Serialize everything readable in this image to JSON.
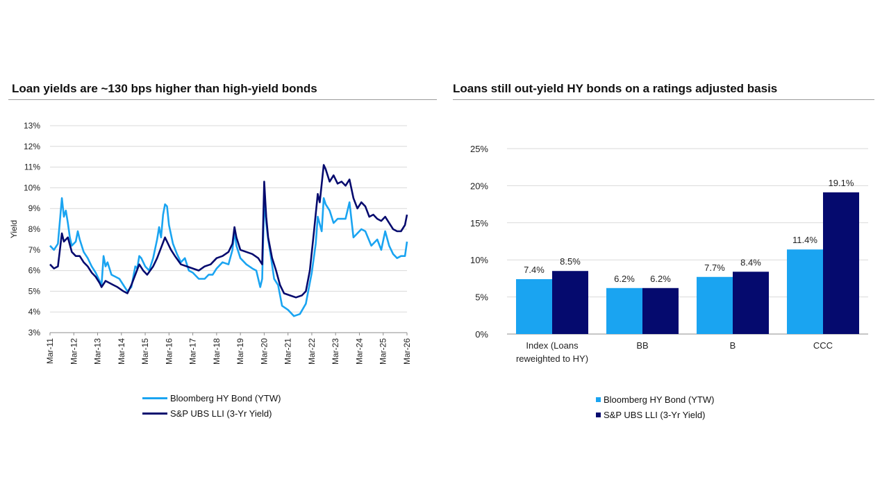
{
  "colors": {
    "hy": "#1aa4f1",
    "lli": "#050a6e",
    "grid": "#d9d9d9",
    "axis": "#8c8c8c"
  },
  "left": {
    "title": "Loan yields are ~130 bps higher than high-yield bonds",
    "legend": [
      "Bloomberg HY Bond (YTW)",
      "S&P UBS LLI (3-Yr Yield)"
    ]
  },
  "right": {
    "title": "Loans still out-yield HY bonds on a ratings adjusted basis",
    "legend": [
      "Bloomberg HY Bond (YTW)",
      "S&P UBS LLI (3-Yr Yield)"
    ]
  },
  "chart_data": [
    {
      "type": "line",
      "title": "Loan yields are ~130 bps higher than high-yield bonds",
      "xlabel": "",
      "ylabel": "Yield",
      "ylim": [
        3,
        13
      ],
      "xlim": [
        "2011-03",
        "2026-03"
      ],
      "y_ticks": [
        "3%",
        "4%",
        "5%",
        "6%",
        "7%",
        "8%",
        "9%",
        "10%",
        "11%",
        "12%",
        "13%"
      ],
      "x_ticks": [
        "Mar-11",
        "Mar-12",
        "Mar-13",
        "Mar-14",
        "Mar-15",
        "Mar-16",
        "Mar-17",
        "Mar-18",
        "Mar-19",
        "Mar-20",
        "Mar-21",
        "Mar-22",
        "Mar-23",
        "Mar-24",
        "Mar-25",
        "Mar-26"
      ],
      "grid": true,
      "legend_position": "bottom",
      "series": [
        {
          "name": "Bloomberg HY Bond (YTW)",
          "color": "#1aa4f1",
          "points": [
            [
              "2011-03",
              7.2
            ],
            [
              "2011-05",
              7.0
            ],
            [
              "2011-07",
              7.3
            ],
            [
              "2011-09",
              9.5
            ],
            [
              "2011-10",
              8.6
            ],
            [
              "2011-11",
              8.9
            ],
            [
              "2011-12",
              8.3
            ],
            [
              "2012-01",
              7.6
            ],
            [
              "2012-02",
              7.2
            ],
            [
              "2012-04",
              7.4
            ],
            [
              "2012-05",
              7.9
            ],
            [
              "2012-06",
              7.5
            ],
            [
              "2012-08",
              6.9
            ],
            [
              "2012-10",
              6.6
            ],
            [
              "2012-12",
              6.2
            ],
            [
              "2013-02",
              5.9
            ],
            [
              "2013-04",
              5.5
            ],
            [
              "2013-05",
              5.3
            ],
            [
              "2013-06",
              6.7
            ],
            [
              "2013-07",
              6.2
            ],
            [
              "2013-08",
              6.4
            ],
            [
              "2013-10",
              5.8
            ],
            [
              "2013-12",
              5.7
            ],
            [
              "2014-02",
              5.6
            ],
            [
              "2014-04",
              5.3
            ],
            [
              "2014-06",
              5.0
            ],
            [
              "2014-08",
              5.2
            ],
            [
              "2014-10",
              6.2
            ],
            [
              "2014-11",
              6.1
            ],
            [
              "2014-12",
              6.7
            ],
            [
              "2015-01",
              6.6
            ],
            [
              "2015-03",
              6.2
            ],
            [
              "2015-05",
              6.0
            ],
            [
              "2015-07",
              6.6
            ],
            [
              "2015-09",
              7.5
            ],
            [
              "2015-10",
              8.1
            ],
            [
              "2015-11",
              7.6
            ],
            [
              "2015-12",
              8.7
            ],
            [
              "2016-01",
              9.2
            ],
            [
              "2016-02",
              9.1
            ],
            [
              "2016-03",
              8.2
            ],
            [
              "2016-05",
              7.3
            ],
            [
              "2016-07",
              6.8
            ],
            [
              "2016-09",
              6.4
            ],
            [
              "2016-11",
              6.6
            ],
            [
              "2017-01",
              6.0
            ],
            [
              "2017-03",
              5.9
            ],
            [
              "2017-06",
              5.6
            ],
            [
              "2017-09",
              5.6
            ],
            [
              "2017-11",
              5.8
            ],
            [
              "2018-01",
              5.8
            ],
            [
              "2018-03",
              6.1
            ],
            [
              "2018-06",
              6.4
            ],
            [
              "2018-09",
              6.3
            ],
            [
              "2018-11",
              7.0
            ],
            [
              "2018-12",
              7.9
            ],
            [
              "2019-01",
              7.2
            ],
            [
              "2019-03",
              6.6
            ],
            [
              "2019-06",
              6.3
            ],
            [
              "2019-09",
              6.1
            ],
            [
              "2019-11",
              6.0
            ],
            [
              "2020-01",
              5.2
            ],
            [
              "2020-02",
              5.6
            ],
            [
              "2020-03",
              9.4
            ],
            [
              "2020-04",
              8.3
            ],
            [
              "2020-05",
              7.5
            ],
            [
              "2020-06",
              6.9
            ],
            [
              "2020-08",
              5.6
            ],
            [
              "2020-10",
              5.3
            ],
            [
              "2020-12",
              4.3
            ],
            [
              "2021-03",
              4.1
            ],
            [
              "2021-06",
              3.8
            ],
            [
              "2021-09",
              3.9
            ],
            [
              "2021-12",
              4.4
            ],
            [
              "2022-01",
              4.9
            ],
            [
              "2022-03",
              5.9
            ],
            [
              "2022-05",
              7.3
            ],
            [
              "2022-06",
              8.6
            ],
            [
              "2022-08",
              7.9
            ],
            [
              "2022-09",
              9.5
            ],
            [
              "2022-10",
              9.2
            ],
            [
              "2022-12",
              8.9
            ],
            [
              "2023-02",
              8.3
            ],
            [
              "2023-04",
              8.5
            ],
            [
              "2023-06",
              8.5
            ],
            [
              "2023-08",
              8.5
            ],
            [
              "2023-10",
              9.3
            ],
            [
              "2023-12",
              7.6
            ],
            [
              "2024-02",
              7.8
            ],
            [
              "2024-04",
              8.0
            ],
            [
              "2024-06",
              7.9
            ],
            [
              "2024-09",
              7.2
            ],
            [
              "2024-12",
              7.5
            ],
            [
              "2025-02",
              7.0
            ],
            [
              "2025-04",
              7.9
            ],
            [
              "2025-06",
              7.2
            ],
            [
              "2025-08",
              6.8
            ],
            [
              "2025-10",
              6.6
            ],
            [
              "2025-12",
              6.7
            ],
            [
              "2026-02",
              6.7
            ],
            [
              "2026-03",
              7.4
            ]
          ]
        },
        {
          "name": "S&P UBS LLI (3-Yr Yield)",
          "color": "#050a6e",
          "points": [
            [
              "2011-03",
              6.3
            ],
            [
              "2011-05",
              6.1
            ],
            [
              "2011-07",
              6.2
            ],
            [
              "2011-09",
              7.8
            ],
            [
              "2011-10",
              7.4
            ],
            [
              "2011-12",
              7.6
            ],
            [
              "2012-02",
              6.9
            ],
            [
              "2012-04",
              6.7
            ],
            [
              "2012-06",
              6.7
            ],
            [
              "2012-08",
              6.4
            ],
            [
              "2012-10",
              6.2
            ],
            [
              "2012-12",
              5.9
            ],
            [
              "2013-02",
              5.7
            ],
            [
              "2013-04",
              5.4
            ],
            [
              "2013-05",
              5.2
            ],
            [
              "2013-07",
              5.5
            ],
            [
              "2013-09",
              5.4
            ],
            [
              "2013-11",
              5.3
            ],
            [
              "2014-01",
              5.2
            ],
            [
              "2014-04",
              5.0
            ],
            [
              "2014-06",
              4.9
            ],
            [
              "2014-08",
              5.3
            ],
            [
              "2014-10",
              5.8
            ],
            [
              "2014-12",
              6.3
            ],
            [
              "2015-02",
              6.0
            ],
            [
              "2015-04",
              5.8
            ],
            [
              "2015-07",
              6.2
            ],
            [
              "2015-09",
              6.6
            ],
            [
              "2015-11",
              7.1
            ],
            [
              "2016-01",
              7.6
            ],
            [
              "2016-02",
              7.4
            ],
            [
              "2016-04",
              7.0
            ],
            [
              "2016-06",
              6.7
            ],
            [
              "2016-09",
              6.3
            ],
            [
              "2016-12",
              6.2
            ],
            [
              "2017-03",
              6.1
            ],
            [
              "2017-06",
              6.0
            ],
            [
              "2017-09",
              6.2
            ],
            [
              "2017-12",
              6.3
            ],
            [
              "2018-03",
              6.6
            ],
            [
              "2018-06",
              6.7
            ],
            [
              "2018-09",
              6.9
            ],
            [
              "2018-11",
              7.3
            ],
            [
              "2018-12",
              8.1
            ],
            [
              "2019-01",
              7.6
            ],
            [
              "2019-03",
              7.0
            ],
            [
              "2019-06",
              6.9
            ],
            [
              "2019-09",
              6.8
            ],
            [
              "2019-12",
              6.6
            ],
            [
              "2020-02",
              6.3
            ],
            [
              "2020-03",
              10.3
            ],
            [
              "2020-04",
              8.6
            ],
            [
              "2020-05",
              7.6
            ],
            [
              "2020-07",
              6.6
            ],
            [
              "2020-09",
              6.0
            ],
            [
              "2020-11",
              5.3
            ],
            [
              "2021-01",
              4.9
            ],
            [
              "2021-04",
              4.8
            ],
            [
              "2021-07",
              4.7
            ],
            [
              "2021-10",
              4.8
            ],
            [
              "2021-12",
              5.0
            ],
            [
              "2022-02",
              6.0
            ],
            [
              "2022-04",
              7.8
            ],
            [
              "2022-06",
              9.7
            ],
            [
              "2022-07",
              9.3
            ],
            [
              "2022-09",
              11.1
            ],
            [
              "2022-10",
              10.9
            ],
            [
              "2022-12",
              10.3
            ],
            [
              "2023-02",
              10.6
            ],
            [
              "2023-04",
              10.2
            ],
            [
              "2023-06",
              10.3
            ],
            [
              "2023-08",
              10.1
            ],
            [
              "2023-10",
              10.4
            ],
            [
              "2023-12",
              9.5
            ],
            [
              "2024-02",
              9.0
            ],
            [
              "2024-04",
              9.3
            ],
            [
              "2024-06",
              9.1
            ],
            [
              "2024-08",
              8.6
            ],
            [
              "2024-10",
              8.7
            ],
            [
              "2024-12",
              8.5
            ],
            [
              "2025-02",
              8.4
            ],
            [
              "2025-04",
              8.6
            ],
            [
              "2025-06",
              8.3
            ],
            [
              "2025-08",
              8.0
            ],
            [
              "2025-10",
              7.9
            ],
            [
              "2025-12",
              7.9
            ],
            [
              "2026-02",
              8.2
            ],
            [
              "2026-03",
              8.7
            ]
          ]
        }
      ]
    },
    {
      "type": "bar",
      "title": "Loans still out-yield HY bonds on a ratings adjusted basis",
      "xlabel": "",
      "ylabel": "",
      "ylim": [
        0,
        25
      ],
      "y_ticks": [
        "0%",
        "5%",
        "10%",
        "15%",
        "20%",
        "25%"
      ],
      "categories": [
        "Index (Loans reweighted to HY)",
        "BB",
        "B",
        "CCC"
      ],
      "grid": true,
      "legend_position": "bottom",
      "series": [
        {
          "name": "Bloomberg HY Bond (YTW)",
          "color": "#1aa4f1",
          "values": [
            7.4,
            6.2,
            7.7,
            11.4
          ],
          "labels": [
            "7.4%",
            "6.2%",
            "7.7%",
            "11.4%"
          ]
        },
        {
          "name": "S&P UBS LLI (3-Yr Yield)",
          "color": "#050a6e",
          "values": [
            8.5,
            6.2,
            8.4,
            19.1
          ],
          "labels": [
            "8.5%",
            "6.2%",
            "8.4%",
            "19.1%"
          ]
        }
      ]
    }
  ]
}
